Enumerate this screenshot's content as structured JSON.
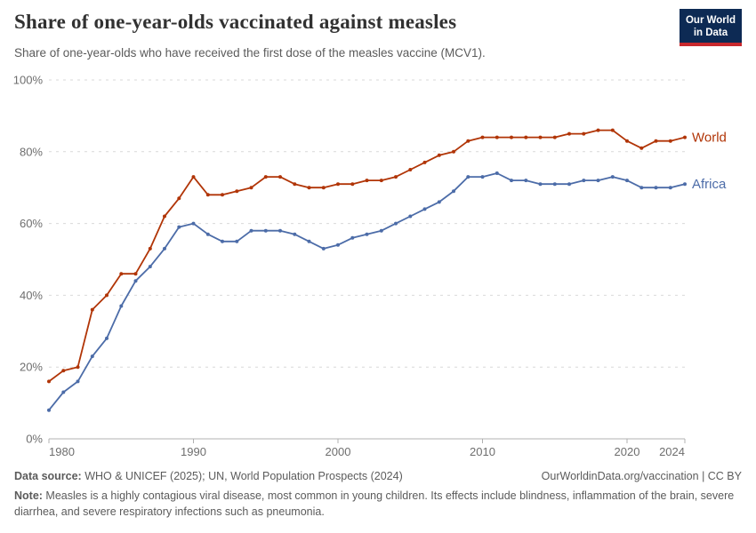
{
  "header": {
    "title": "Share of one-year-olds vaccinated against measles",
    "subtitle": "Share of one-year-olds who have received the first dose of the measles vaccine (MCV1).",
    "logo": {
      "line1": "Our World",
      "line2": "in Data",
      "bg_color": "#0D2A54",
      "stripe_color": "#C8282D"
    }
  },
  "chart_data": {
    "type": "line",
    "title": "Share of one-year-olds vaccinated against measles",
    "x": [
      1980,
      1981,
      1982,
      1983,
      1984,
      1985,
      1986,
      1987,
      1988,
      1989,
      1990,
      1991,
      1992,
      1993,
      1994,
      1995,
      1996,
      1997,
      1998,
      1999,
      2000,
      2001,
      2002,
      2003,
      2004,
      2005,
      2006,
      2007,
      2008,
      2009,
      2010,
      2011,
      2012,
      2013,
      2014,
      2015,
      2016,
      2017,
      2018,
      2019,
      2020,
      2021,
      2022,
      2023,
      2024
    ],
    "series": [
      {
        "name": "World",
        "color": "#B13507",
        "values": [
          16,
          19,
          20,
          36,
          40,
          46,
          46,
          53,
          62,
          67,
          73,
          68,
          68,
          69,
          70,
          73,
          73,
          71,
          70,
          70,
          71,
          71,
          72,
          72,
          73,
          75,
          77,
          79,
          80,
          83,
          84,
          84,
          84,
          84,
          84,
          84,
          85,
          85,
          86,
          86,
          83,
          81,
          83,
          83,
          84
        ]
      },
      {
        "name": "Africa",
        "color": "#4C6CA8",
        "values": [
          8,
          13,
          16,
          23,
          28,
          37,
          44,
          48,
          53,
          59,
          60,
          57,
          55,
          55,
          58,
          58,
          58,
          57,
          55,
          53,
          54,
          56,
          57,
          58,
          60,
          62,
          64,
          66,
          69,
          73,
          73,
          74,
          72,
          72,
          71,
          71,
          71,
          72,
          72,
          73,
          72,
          70,
          70,
          70,
          71
        ]
      }
    ],
    "ylim": [
      0,
      100
    ],
    "yticks": [
      0,
      20,
      40,
      60,
      80,
      100
    ],
    "ytick_suffix": "%",
    "xticks": [
      1980,
      1990,
      2000,
      2010,
      2020,
      2024
    ],
    "grid": "horizontal dashed",
    "legend_position": "right end-of-line labels",
    "colors": {
      "grid": "#d9d9d9",
      "axis": "#b0b0b0",
      "tick_label": "#6e6e6e"
    }
  },
  "footer": {
    "datasource_label": "Data source:",
    "datasource_text": " WHO & UNICEF (2025); UN, World Population Prospects (2024)",
    "link": "OurWorldinData.org/vaccination | CC BY",
    "note_label": "Note:",
    "note_text": " Measles is a highly contagious viral disease, most common in young children. Its effects include blindness, inflammation of the brain, severe diarrhea, and severe respiratory infections such as pneumonia."
  }
}
